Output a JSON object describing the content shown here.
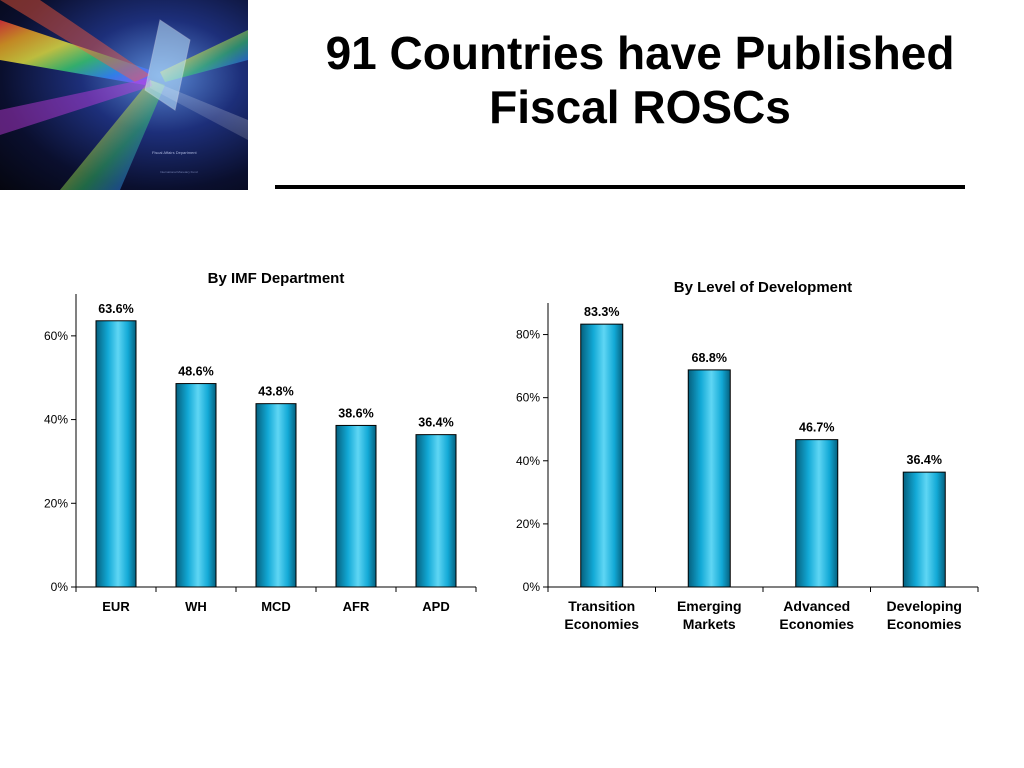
{
  "slide": {
    "title": "91 Countries have Published Fiscal ROSCs",
    "logo_caption": "Fiscal Affairs Department",
    "logo_sub": "International Monetary Fund"
  },
  "colors": {
    "bar_light": "#5fd6f4",
    "bar_mid": "#12a9d6",
    "bar_dark": "#05607e",
    "bar_edge": "#000000",
    "axis": "#000000"
  },
  "chart_data": [
    {
      "type": "bar",
      "title": "By IMF Department",
      "categories": [
        [
          "EUR"
        ],
        [
          "WH"
        ],
        [
          "MCD"
        ],
        [
          "AFR"
        ],
        [
          "APD"
        ]
      ],
      "values": [
        63.6,
        48.6,
        43.8,
        38.6,
        36.4
      ],
      "data_labels": [
        "63.6%",
        "48.6%",
        "43.8%",
        "38.6%",
        "36.4%"
      ],
      "ylim": [
        0,
        70
      ],
      "yticks": [
        0,
        20,
        40,
        60
      ],
      "ytick_labels": [
        "0%",
        "20%",
        "40%",
        "60%"
      ],
      "grid": false
    },
    {
      "type": "bar",
      "title": "By Level of Development",
      "categories": [
        [
          "Transition",
          "Economies"
        ],
        [
          "Emerging",
          "Markets"
        ],
        [
          "Advanced",
          "Economies"
        ],
        [
          "Developing",
          "Economies"
        ]
      ],
      "values": [
        83.3,
        68.8,
        46.7,
        36.4
      ],
      "data_labels": [
        "83.3%",
        "68.8%",
        "46.7%",
        "36.4%"
      ],
      "ylim": [
        0,
        90
      ],
      "yticks": [
        0,
        20,
        40,
        60,
        80
      ],
      "ytick_labels": [
        "0%",
        "20%",
        "40%",
        "60%",
        "80%"
      ],
      "grid": false
    }
  ]
}
